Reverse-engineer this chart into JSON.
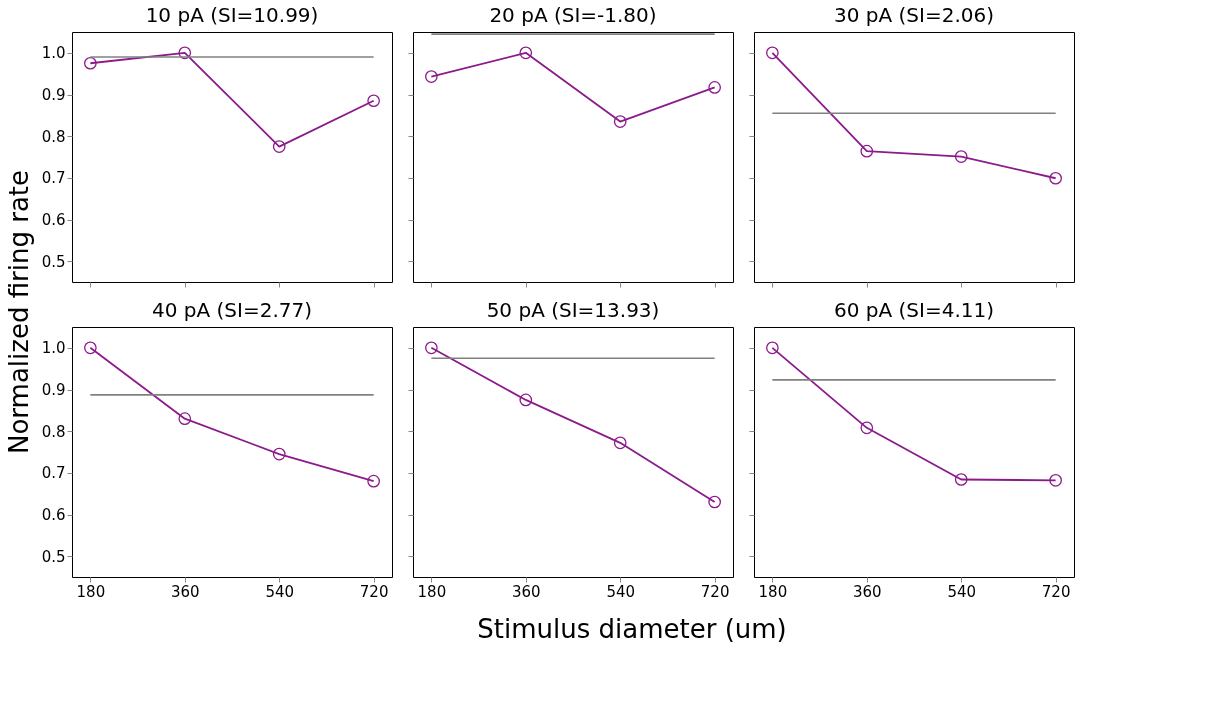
{
  "chart_data": [
    {
      "type": "line",
      "title": "10 pA (SI=10.99)",
      "ylabel": "Normalized firing rate",
      "x": [
        180,
        360,
        540,
        720
      ],
      "series": [
        {
          "color": "#8b1a8b",
          "values": [
            0.975,
            1.0,
            0.775,
            0.885
          ]
        }
      ],
      "ref_lines": [
        {
          "axis": "y",
          "value": 0.99,
          "color": "#808080"
        }
      ],
      "xlim": [
        145,
        755
      ],
      "ylim": [
        0.45,
        1.05
      ],
      "xticks": [
        180,
        360,
        540,
        720
      ],
      "yticks": [
        {
          "value": 0.5,
          "label": "0.5"
        },
        {
          "value": 0.6,
          "label": "0.6"
        },
        {
          "value": 0.7,
          "label": "0.7"
        },
        {
          "value": 0.8,
          "label": "0.8"
        },
        {
          "value": 0.9,
          "label": "0.9"
        },
        {
          "value": 1.0,
          "label": "1.0"
        }
      ],
      "marker": "circle",
      "tick_labels": "y"
    },
    {
      "type": "line",
      "title": "20 pA (SI=-1.80)",
      "x": [
        180,
        360,
        540,
        720
      ],
      "series": [
        {
          "color": "#8b1a8b",
          "values": [
            0.943,
            1.0,
            0.835,
            0.917
          ]
        }
      ],
      "ref_lines": [
        {
          "axis": "y",
          "value": 1.045,
          "color": "#808080"
        }
      ],
      "xlim": [
        145,
        755
      ],
      "ylim": [
        0.45,
        1.05
      ],
      "xticks": [
        180,
        360,
        540,
        720
      ],
      "yticks": [
        0.5,
        0.6,
        0.7,
        0.8,
        0.9,
        1.0
      ],
      "marker": "circle",
      "tick_labels": false
    },
    {
      "type": "line",
      "title": "30 pA (SI=2.06)",
      "x": [
        180,
        360,
        540,
        720
      ],
      "series": [
        {
          "color": "#8b1a8b",
          "values": [
            1.0,
            0.764,
            0.751,
            0.699
          ]
        }
      ],
      "ref_lines": [
        {
          "axis": "y",
          "value": 0.855,
          "color": "#808080"
        }
      ],
      "xlim": [
        145,
        755
      ],
      "ylim": [
        0.45,
        1.05
      ],
      "xticks": [
        180,
        360,
        540,
        720
      ],
      "yticks": [
        0.5,
        0.6,
        0.7,
        0.8,
        0.9,
        1.0
      ],
      "marker": "circle",
      "tick_labels": false
    },
    {
      "type": "line",
      "title": "40 pA (SI=2.77)",
      "x": [
        180,
        360,
        540,
        720
      ],
      "series": [
        {
          "color": "#8b1a8b",
          "values": [
            1.0,
            0.83,
            0.745,
            0.68
          ]
        }
      ],
      "ref_lines": [
        {
          "axis": "y",
          "value": 0.887,
          "color": "#808080"
        }
      ],
      "xlim": [
        145,
        755
      ],
      "ylim": [
        0.45,
        1.05
      ],
      "xticks": [
        180,
        360,
        540,
        720
      ],
      "yticks": [
        {
          "value": 0.5,
          "label": "0.5"
        },
        {
          "value": 0.6,
          "label": "0.6"
        },
        {
          "value": 0.7,
          "label": "0.7"
        },
        {
          "value": 0.8,
          "label": "0.8"
        },
        {
          "value": 0.9,
          "label": "0.9"
        },
        {
          "value": 1.0,
          "label": "1.0"
        }
      ],
      "marker": "circle"
    },
    {
      "type": "line",
      "title": "50 pA (SI=13.93)",
      "xlabel": "Stimulus diameter (um)",
      "x": [
        180,
        360,
        540,
        720
      ],
      "series": [
        {
          "color": "#8b1a8b",
          "values": [
            1.0,
            0.875,
            0.772,
            0.63
          ]
        }
      ],
      "ref_lines": [
        {
          "axis": "y",
          "value": 0.975,
          "color": "#808080"
        }
      ],
      "xlim": [
        145,
        755
      ],
      "ylim": [
        0.45,
        1.05
      ],
      "xticks": [
        180,
        360,
        540,
        720
      ],
      "yticks": [
        0.5,
        0.6,
        0.7,
        0.8,
        0.9,
        1.0
      ],
      "marker": "circle",
      "tick_labels": "x"
    },
    {
      "type": "line",
      "title": "60 pA (SI=4.11)",
      "x": [
        180,
        360,
        540,
        720
      ],
      "series": [
        {
          "color": "#8b1a8b",
          "values": [
            1.0,
            0.808,
            0.684,
            0.682
          ]
        }
      ],
      "ref_lines": [
        {
          "axis": "y",
          "value": 0.923,
          "color": "#808080"
        }
      ],
      "xlim": [
        145,
        755
      ],
      "ylim": [
        0.45,
        1.05
      ],
      "xticks": [
        180,
        360,
        540,
        720
      ],
      "yticks": [
        0.5,
        0.6,
        0.7,
        0.8,
        0.9,
        1.0
      ],
      "marker": "circle",
      "tick_labels": "x"
    }
  ]
}
